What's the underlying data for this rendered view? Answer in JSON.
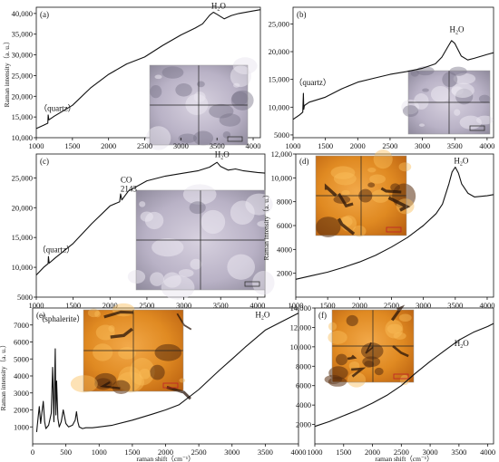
{
  "chart_data": [
    {
      "panel": "(a)",
      "type": "line",
      "ylabel": "Raman intensity（a. u.）",
      "xlabel": "",
      "xlim": [
        1000,
        4100
      ],
      "ylim": [
        10000,
        41500
      ],
      "xticks": [
        1000,
        1500,
        2000,
        2500,
        3000,
        3500,
        4000
      ],
      "yticks": [
        10000,
        15000,
        20000,
        25000,
        30000,
        35000,
        40000
      ],
      "yticklabels": [
        "10,000",
        "15,000",
        "20,000",
        "25,000",
        "30,000",
        "35,000",
        "40,000"
      ],
      "annotations": [
        {
          "text": "（quartz）",
          "x": 1040,
          "y": 16500
        },
        {
          "text": "H₂O",
          "x": 3420,
          "y": 41200
        }
      ],
      "series": [
        {
          "x": [
            1000,
            1100,
            1160,
            1165,
            1175,
            1250,
            1500,
            1750,
            2000,
            2250,
            2500,
            2750,
            3000,
            3200,
            3300,
            3400,
            3450,
            3500,
            3600,
            3700,
            3800,
            4000,
            4100
          ],
          "y": [
            12200,
            13000,
            13500,
            15500,
            14300,
            15200,
            17800,
            22000,
            25300,
            27800,
            29500,
            32300,
            34800,
            36500,
            37500,
            39600,
            40300,
            39800,
            38700,
            39500,
            40000,
            40600,
            40900
          ]
        }
      ]
    },
    {
      "panel": "(b)",
      "type": "line",
      "ylabel": "",
      "xlabel": "",
      "xlim": [
        1000,
        4100
      ],
      "ylim": [
        4500,
        28000
      ],
      "xticks": [
        1000,
        1500,
        2000,
        2500,
        3000,
        3500,
        4000
      ],
      "yticks": [
        5000,
        10000,
        15000,
        20000,
        25000
      ],
      "yticklabels": [
        "5000",
        "10,000",
        "15,000",
        "20,000",
        "25,000"
      ],
      "annotations": [
        {
          "text": "（quartz）",
          "x": 1020,
          "y": 14000
        },
        {
          "text": "H₂O",
          "x": 3420,
          "y": 23500
        }
      ],
      "series": [
        {
          "x": [
            1000,
            1100,
            1150,
            1160,
            1165,
            1175,
            1250,
            1500,
            1750,
            2000,
            2250,
            2500,
            2750,
            3000,
            3200,
            3300,
            3400,
            3450,
            3500,
            3600,
            3700,
            3800,
            4000,
            4100
          ],
          "y": [
            7800,
            8600,
            9100,
            12500,
            9600,
            10300,
            10900,
            11800,
            13300,
            14500,
            15200,
            15900,
            16400,
            17000,
            17800,
            19000,
            21000,
            22000,
            21500,
            19200,
            18500,
            18800,
            19500,
            19800
          ]
        }
      ]
    },
    {
      "panel": "(c)",
      "type": "line",
      "ylabel": "",
      "xlabel": "",
      "xlim": [
        1000,
        4100
      ],
      "ylim": [
        5000,
        29000
      ],
      "xticks": [
        1000,
        1500,
        2000,
        2500,
        3000,
        3500,
        4000
      ],
      "yticks": [
        5000,
        10000,
        15000,
        20000,
        25000
      ],
      "yticklabels": [
        "5000",
        "10,000",
        "15,000",
        "20,000",
        "25,000"
      ],
      "annotations": [
        {
          "text": "（quartz）",
          "x": 1020,
          "y": 12500
        },
        {
          "text": "CO",
          "x": 2143,
          "y": 24200
        },
        {
          "text": "2143",
          "x": 2143,
          "y": 22700
        },
        {
          "text": "H₂O",
          "x": 3420,
          "y": 28500
        }
      ],
      "series": [
        {
          "x": [
            1000,
            1100,
            1160,
            1165,
            1175,
            1250,
            1500,
            1750,
            2000,
            2130,
            2143,
            2160,
            2250,
            2500,
            2750,
            3000,
            3200,
            3350,
            3450,
            3500,
            3600,
            3700,
            3800,
            4000,
            4100
          ],
          "y": [
            8700,
            10000,
            10600,
            11800,
            10700,
            11500,
            14000,
            17300,
            20300,
            21000,
            22300,
            21300,
            22800,
            24500,
            25300,
            25800,
            26200,
            26800,
            27600,
            26900,
            26300,
            26500,
            26200,
            25900,
            25800
          ]
        }
      ]
    },
    {
      "panel": "(d)",
      "type": "line",
      "ylabel": "Raman intensity（a. u.）",
      "xlabel": "",
      "xlim": [
        1000,
        4100
      ],
      "ylim": [
        0,
        12000
      ],
      "xticks": [
        1000,
        1500,
        2000,
        2500,
        3000,
        3500,
        4000
      ],
      "yticks": [
        2000,
        4000,
        6000,
        8000,
        10000,
        12000
      ],
      "yticklabels": [
        "2000",
        "4000",
        "6000",
        "8000",
        "10,000",
        "12,000"
      ],
      "annotations": [
        {
          "text": "H₂O",
          "x": 3480,
          "y": 11200
        }
      ],
      "series": [
        {
          "x": [
            1000,
            1250,
            1500,
            1750,
            2000,
            2250,
            2500,
            2750,
            3000,
            3200,
            3300,
            3400,
            3450,
            3500,
            3550,
            3600,
            3700,
            3800,
            4000,
            4100
          ],
          "y": [
            1500,
            1800,
            2100,
            2500,
            2950,
            3500,
            4200,
            5000,
            6000,
            7000,
            7800,
            9500,
            10500,
            10900,
            10400,
            9500,
            8700,
            8400,
            8500,
            8600
          ]
        }
      ]
    },
    {
      "panel": "(e)",
      "type": "line",
      "ylabel": "Raman intensity（a. u.）",
      "xlabel": "raman shift（cm⁻¹）",
      "xlim": [
        0,
        4000
      ],
      "ylim": [
        0,
        8000
      ],
      "xticks": [
        0,
        500,
        1000,
        1500,
        2000,
        2500,
        3000,
        3500,
        4000
      ],
      "yticks": [
        1000,
        2000,
        3000,
        4000,
        5000,
        6000,
        7000
      ],
      "yticklabels": [
        "1000",
        "2000",
        "3000",
        "4000",
        "5000",
        "6000",
        "7000"
      ],
      "annotations": [
        {
          "text": "（sphalerite）",
          "x": 60,
          "y": 7200
        },
        {
          "text": "H₂O",
          "x": 3350,
          "y": 7450
        }
      ],
      "series": [
        {
          "x": [
            60,
            80,
            100,
            120,
            140,
            160,
            180,
            200,
            240,
            280,
            300,
            320,
            340,
            350,
            360,
            380,
            400,
            430,
            460,
            500,
            540,
            600,
            640,
            660,
            680,
            700,
            750,
            800,
            900,
            1000,
            1200,
            1500,
            1800,
            2000,
            2200,
            2500,
            2800,
            3000,
            3200,
            3500,
            3800,
            4000
          ],
          "y": [
            700,
            1500,
            2200,
            1200,
            1900,
            2500,
            1300,
            900,
            1100,
            1800,
            4500,
            1300,
            5600,
            1700,
            3700,
            1500,
            1000,
            1300,
            2000,
            1200,
            1000,
            1100,
            1400,
            1900,
            1300,
            1000,
            900,
            950,
            950,
            1000,
            1100,
            1400,
            1750,
            2000,
            2300,
            3200,
            4300,
            5000,
            5700,
            6700,
            7300,
            7700
          ]
        }
      ]
    },
    {
      "panel": "(f)",
      "type": "line",
      "ylabel": "",
      "xlabel": "raman shift（cm⁻¹）",
      "xlim": [
        1000,
        4100
      ],
      "ylim": [
        0,
        14000
      ],
      "xticks": [
        1000,
        1500,
        2000,
        2500,
        3000,
        3500,
        4000
      ],
      "yticks": [
        2000,
        4000,
        6000,
        8000,
        10000,
        12000,
        14000
      ],
      "yticklabels": [
        "2000",
        "4000",
        "6000",
        "8000",
        "10,000",
        "12,000",
        "14,000"
      ],
      "annotations": [
        {
          "text": "H₂O",
          "x": 3420,
          "y": 10100
        }
      ],
      "series": [
        {
          "x": [
            1000,
            1250,
            1500,
            1750,
            2000,
            2250,
            2500,
            2750,
            3000,
            3250,
            3500,
            3750,
            4000,
            4100
          ],
          "y": [
            1800,
            2300,
            2900,
            3500,
            4200,
            5000,
            6000,
            7300,
            8500,
            9600,
            10700,
            11500,
            12100,
            12400
          ]
        }
      ]
    }
  ],
  "icons": [
    "micrograph-a",
    "micrograph-b",
    "micrograph-c",
    "micrograph-d",
    "micrograph-e",
    "micrograph-f"
  ]
}
